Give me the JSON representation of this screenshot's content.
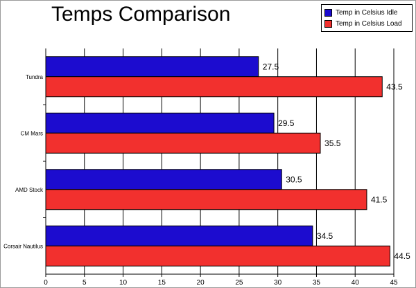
{
  "chart_data": {
    "type": "bar",
    "orientation": "horizontal",
    "title": "Temps Comparison",
    "xlabel": "",
    "ylabel": "",
    "xlim": [
      0,
      45
    ],
    "ticks": [
      "0",
      "5",
      "10",
      "15",
      "20",
      "25",
      "30",
      "35",
      "40",
      "45"
    ],
    "categories": [
      "Tundra",
      "CM Mars",
      "AMD Stock",
      "Corsair Nautilus"
    ],
    "series": [
      {
        "name": "Temp in Celsius Idle",
        "color": "#1c0ccf",
        "values": [
          27.5,
          29.5,
          30.5,
          34.5
        ],
        "labels": [
          "27.5",
          "29.5",
          "30.5",
          "34.5"
        ]
      },
      {
        "name": "Temp in Celsius Load",
        "color": "#f2302e",
        "values": [
          43.5,
          35.5,
          41.5,
          44.5
        ],
        "labels": [
          "43.5",
          "35.5",
          "41.5",
          "44.5"
        ]
      }
    ],
    "grid": true,
    "legend": "top-right"
  }
}
